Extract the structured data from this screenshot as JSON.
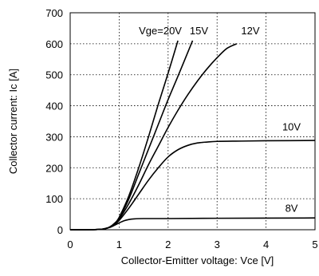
{
  "chart_data": {
    "type": "line",
    "title": "",
    "xlabel": "Collector-Emitter voltage: Vce [V]",
    "ylabel": "Collector current: Ic [A]",
    "xlim": [
      0,
      5
    ],
    "ylim": [
      0,
      700
    ],
    "xticks": [
      0,
      1,
      2,
      3,
      4,
      5
    ],
    "yticks": [
      0,
      100,
      200,
      300,
      400,
      500,
      600,
      700
    ],
    "grid": true,
    "legend": "inline",
    "series": [
      {
        "name": "Vge=20V",
        "x": [
          0,
          0.4,
          0.6,
          0.7,
          0.8,
          0.9,
          1.0,
          1.2,
          1.4,
          1.6,
          1.8,
          2.0,
          2.2
        ],
        "y": [
          0,
          0,
          1,
          3,
          8,
          20,
          40,
          110,
          200,
          300,
          405,
          505,
          610
        ]
      },
      {
        "name": "15V",
        "x": [
          0,
          0.4,
          0.6,
          0.7,
          0.8,
          0.9,
          1.0,
          1.2,
          1.4,
          1.6,
          1.8,
          2.0,
          2.2,
          2.5
        ],
        "y": [
          0,
          0,
          1,
          3,
          8,
          19,
          37,
          100,
          180,
          260,
          340,
          420,
          495,
          610
        ]
      },
      {
        "name": "12V",
        "x": [
          0,
          0.4,
          0.6,
          0.7,
          0.8,
          0.9,
          1.0,
          1.2,
          1.4,
          1.6,
          1.8,
          2.0,
          2.2,
          2.4,
          2.6,
          2.8,
          3.0,
          3.2,
          3.4
        ],
        "y": [
          0,
          0,
          1,
          3,
          8,
          18,
          34,
          85,
          145,
          210,
          270,
          330,
          385,
          435,
          480,
          520,
          555,
          585,
          600
        ]
      },
      {
        "name": "10V",
        "x": [
          0,
          0.4,
          0.6,
          0.7,
          0.8,
          0.9,
          1.0,
          1.2,
          1.4,
          1.6,
          1.8,
          2.0,
          2.2,
          2.4,
          2.6,
          2.8,
          3.0,
          3.5,
          4.0,
          5.0
        ],
        "y": [
          0,
          0,
          1,
          3,
          8,
          17,
          30,
          70,
          115,
          160,
          200,
          235,
          258,
          272,
          280,
          283,
          285,
          286,
          287,
          288
        ]
      },
      {
        "name": "8V",
        "x": [
          0,
          0.4,
          0.6,
          0.7,
          0.8,
          0.9,
          1.0,
          1.1,
          1.2,
          1.3,
          1.5,
          2.0,
          3.0,
          5.0
        ],
        "y": [
          0,
          0,
          1,
          3,
          7,
          14,
          22,
          29,
          33,
          35,
          36,
          36,
          37,
          38
        ]
      }
    ]
  }
}
